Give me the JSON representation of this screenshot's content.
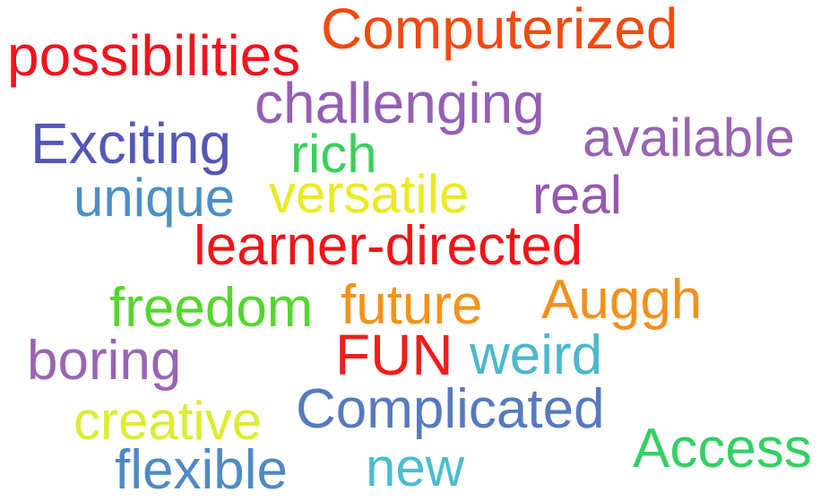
{
  "words": [
    {
      "text": "possibilities",
      "color": "#f0141e"
    },
    {
      "text": "Computerized",
      "color": "#f24a12"
    },
    {
      "text": "challenging",
      "color": "#9460b4"
    },
    {
      "text": "Exciting",
      "color": "#5457b6"
    },
    {
      "text": "available",
      "color": "#9765b2"
    },
    {
      "text": "rich",
      "color": "#3ad15a"
    },
    {
      "text": "unique",
      "color": "#4d8fc6"
    },
    {
      "text": "versatile",
      "color": "#eaea22"
    },
    {
      "text": "real",
      "color": "#9458b0"
    },
    {
      "text": "learner-directed",
      "color": "#f21418"
    },
    {
      "text": "freedom",
      "color": "#55d62e"
    },
    {
      "text": "future",
      "color": "#f5921a"
    },
    {
      "text": "Auggh",
      "color": "#f2901c"
    },
    {
      "text": "boring",
      "color": "#9a64b2"
    },
    {
      "text": "FUN",
      "color": "#f21c1a"
    },
    {
      "text": "weird",
      "color": "#4ab8cc"
    },
    {
      "text": "creative",
      "color": "#dcec32"
    },
    {
      "text": "Complicated",
      "color": "#5679c0"
    },
    {
      "text": "Access",
      "color": "#34d064"
    },
    {
      "text": "flexible",
      "color": "#4e8ac4"
    },
    {
      "text": "new",
      "color": "#4abdd0"
    }
  ]
}
